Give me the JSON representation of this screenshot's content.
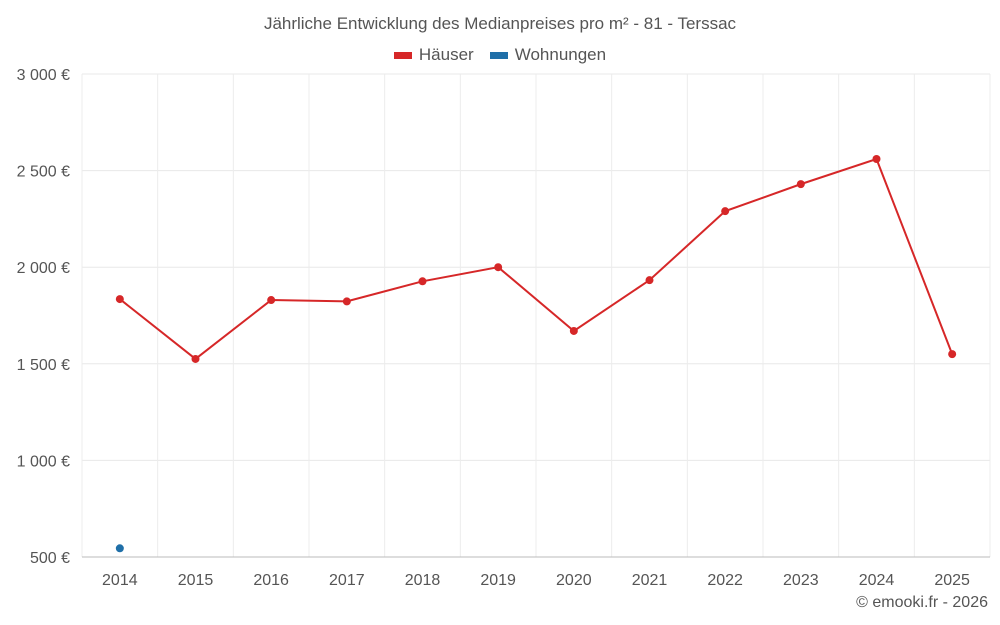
{
  "chart_data": {
    "type": "line",
    "title": "Jährliche Entwicklung des Medianpreises pro m² - 81 - Terssac",
    "xlabel": "",
    "ylabel": "",
    "ylim": [
      500,
      3000
    ],
    "yticks": [
      500,
      1000,
      1500,
      2000,
      2500,
      3000
    ],
    "ytick_labels": [
      "500 €",
      "1 000 €",
      "1 500 €",
      "2 000 €",
      "2 500 €",
      "3 000 €"
    ],
    "categories": [
      "2014",
      "2015",
      "2016",
      "2017",
      "2018",
      "2019",
      "2020",
      "2021",
      "2022",
      "2023",
      "2024",
      "2025"
    ],
    "grid": true,
    "legend_position": "top-center",
    "series": [
      {
        "name": "Häuser",
        "color": "#d62728",
        "values": [
          1835,
          1525,
          1830,
          1823,
          1927,
          2000,
          1670,
          1933,
          2290,
          2430,
          2560,
          1550
        ]
      },
      {
        "name": "Wohnungen",
        "color": "#1f6fa8",
        "values": [
          545,
          null,
          null,
          null,
          null,
          null,
          null,
          null,
          null,
          null,
          null,
          null
        ]
      }
    ]
  },
  "credit": "© emooki.fr - 2026"
}
